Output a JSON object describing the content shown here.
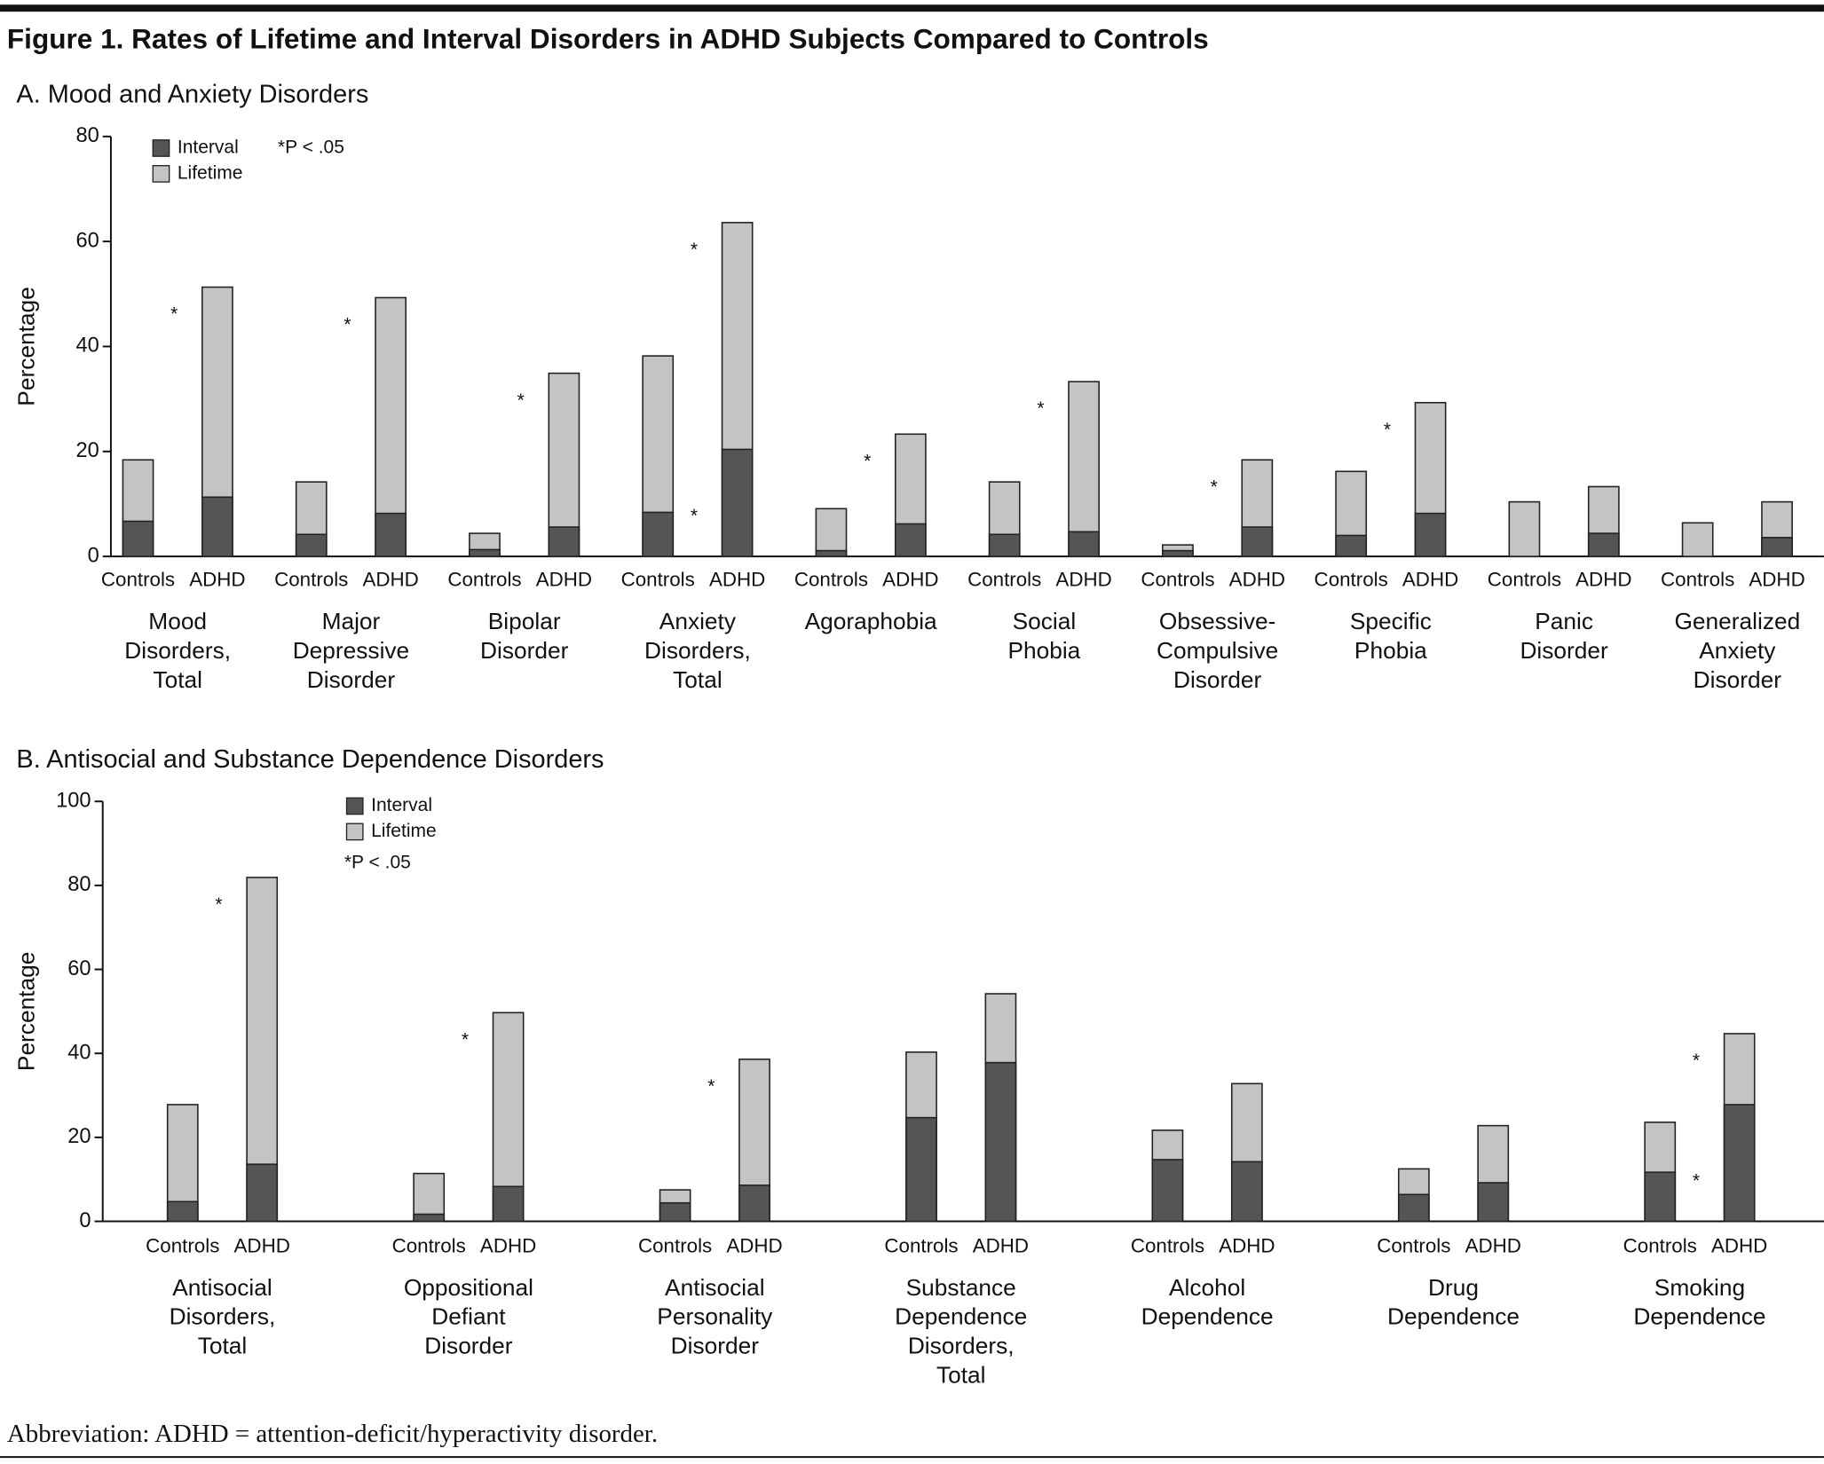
{
  "title": "Figure 1. Rates of Lifetime and Interval Disorders in ADHD Subjects Compared to Controls",
  "footnote": "Abbreviation: ADHD = attention-deficit/hyperactivity disorder.",
  "chart_data": [
    {
      "type": "bar",
      "title": "A. Mood and Anxiety Disorders",
      "ylabel": "Percentage",
      "groups": [
        "Controls",
        "ADHD"
      ],
      "categories": [
        "Mood\nDisorders,\nTotal",
        "Major\nDepressive\nDisorder",
        "Bipolar\nDisorder",
        "Anxiety\nDisorders,\nTotal",
        "Agoraphobia",
        "Social\nPhobia",
        "Obsessive-\nCompulsive\nDisorder",
        "Specific\nPhobia",
        "Panic\nDisorder",
        "Generalized\nAnxiety\nDisorder"
      ],
      "series": [
        {
          "name": "Interval",
          "color": "#555555",
          "values": [
            [
              6.7,
              11.3
            ],
            [
              4.2,
              8.2
            ],
            [
              1.3,
              5.6
            ],
            [
              8.4,
              20.4
            ],
            [
              1.1,
              6.2
            ],
            [
              4.2,
              4.7
            ],
            [
              1.1,
              5.6
            ],
            [
              4.0,
              8.2
            ],
            [
              null,
              4.4
            ],
            [
              null,
              3.6
            ]
          ]
        },
        {
          "name": "Lifetime",
          "color": "#c4c4c4",
          "values": [
            [
              18.4,
              51.3
            ],
            [
              14.2,
              49.3
            ],
            [
              4.4,
              34.9
            ],
            [
              38.2,
              63.6
            ],
            [
              9.1,
              23.3
            ],
            [
              14.2,
              33.3
            ],
            [
              2.2,
              18.4
            ],
            [
              16.2,
              29.3
            ],
            [
              10.4,
              13.3
            ],
            [
              6.4,
              10.4
            ]
          ]
        }
      ],
      "lifetime_sig": [
        "*",
        "*",
        "*",
        "*",
        "*",
        "*",
        "*",
        "*",
        null,
        null
      ],
      "interval_sig": [
        null,
        null,
        null,
        "*",
        null,
        null,
        null,
        null,
        null,
        null
      ],
      "note": "*P < .05",
      "legend": "upper left",
      "ylim": [
        0,
        80
      ],
      "yticks": [
        0,
        20,
        40,
        60,
        80
      ]
    },
    {
      "type": "bar",
      "title": "B. Antisocial and Substance Dependence Disorders",
      "ylabel": "Percentage",
      "groups": [
        "Controls",
        "ADHD"
      ],
      "categories": [
        "Antisocial\nDisorders,\nTotal",
        "Oppositional\nDefiant\nDisorder",
        "Antisocial\nPersonality\nDisorder",
        "Substance\nDependence\nDisorders,\nTotal",
        "Alcohol\nDependence",
        "Drug\nDependence",
        "Smoking\nDependence"
      ],
      "series": [
        {
          "name": "Interval",
          "color": "#555555",
          "values": [
            [
              4.7,
              13.6
            ],
            [
              1.7,
              8.3
            ],
            [
              4.4,
              8.6
            ],
            [
              24.7,
              37.8
            ],
            [
              14.7,
              14.2
            ],
            [
              6.4,
              9.2
            ],
            [
              11.7,
              27.8
            ]
          ]
        },
        {
          "name": "Lifetime",
          "color": "#c4c4c4",
          "values": [
            [
              27.8,
              81.9
            ],
            [
              11.4,
              49.7
            ],
            [
              7.5,
              38.6
            ],
            [
              40.3,
              54.2
            ],
            [
              21.7,
              32.8
            ],
            [
              12.5,
              22.8
            ],
            [
              23.6,
              44.7
            ]
          ]
        }
      ],
      "lifetime_sig": [
        "*",
        "*",
        "*",
        null,
        null,
        null,
        "*"
      ],
      "interval_sig": [
        null,
        null,
        null,
        null,
        null,
        null,
        "*"
      ],
      "note": "*P < .05",
      "legend": "upper left",
      "ylim": [
        0,
        100
      ],
      "yticks": [
        0,
        20,
        40,
        60,
        80,
        100
      ]
    }
  ]
}
